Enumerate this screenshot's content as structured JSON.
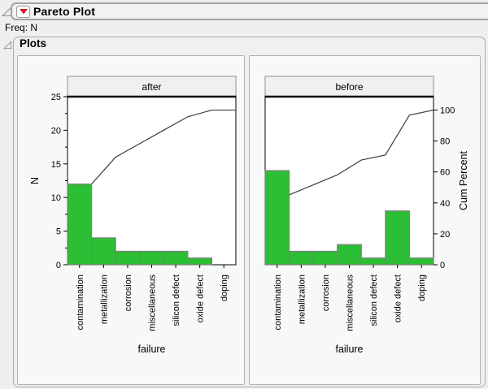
{
  "header": {
    "title": "Pareto Plot",
    "freq_label": "Freq: N",
    "disclosure_icon": "disclosure-triangle",
    "red_triangle_icon": "red-triangle-menu"
  },
  "plots_section": {
    "title": "Plots"
  },
  "colors": {
    "bar_fill": "#2cbe34",
    "bar_border": "#7f7f7f",
    "cum_line": "#3c3c3c",
    "accent_red": "#ce2029",
    "plot_frame": "#000000",
    "panel_border": "#b2b2b2",
    "header_box_fill": "#f0f0f0",
    "header_box_border": "#8f8f8f"
  },
  "chart_data": {
    "type": "bar",
    "title": "Pareto Plot",
    "categories": [
      "contamination",
      "metallization",
      "corrosion",
      "miscellaneous",
      "silicon defect",
      "oxide defect",
      "doping"
    ],
    "xlabel": "failure",
    "ylabel": "N",
    "y2label": "Cum Percent",
    "ylim": [
      0,
      25
    ],
    "y2lim": [
      0,
      100
    ],
    "yticks": [
      0,
      5,
      10,
      15,
      20,
      25
    ],
    "y2ticks": [
      0,
      20,
      40,
      60,
      80,
      100
    ],
    "grid": false,
    "legend": "none",
    "panels": [
      {
        "label": "after",
        "values": [
          12,
          4,
          2,
          2,
          2,
          1,
          0
        ],
        "total": 23,
        "cum_percent": [
          52.2,
          69.6,
          78.3,
          87.0,
          95.7,
          100.0,
          100.0
        ]
      },
      {
        "label": "before",
        "values": [
          14,
          2,
          2,
          3,
          1,
          8,
          1
        ],
        "total": 31,
        "cum_percent": [
          45.2,
          51.6,
          58.1,
          67.7,
          71.0,
          96.8,
          100.0
        ]
      }
    ]
  }
}
